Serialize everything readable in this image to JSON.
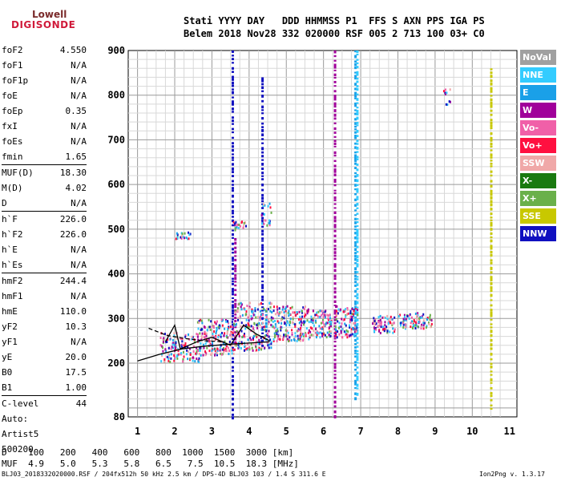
{
  "logo": {
    "top": "Lowell",
    "bottom": "DIGISONDE"
  },
  "header": {
    "line1": "Stati YYYY DAY   DDD HHMMSS P1  FFS S AXN PPS IGA PS",
    "line2": "Belem 2018 Nov28 332 020000 RSF 005 2 713 100 03+ C0"
  },
  "parameters": [
    {
      "name": "foF2",
      "value": "4.550"
    },
    {
      "name": "foF1",
      "value": "N/A"
    },
    {
      "name": "foF1p",
      "value": "N/A"
    },
    {
      "name": "foE",
      "value": "N/A"
    },
    {
      "name": "foEp",
      "value": "0.35"
    },
    {
      "name": "fxI",
      "value": "N/A"
    },
    {
      "name": "foEs",
      "value": "N/A"
    },
    {
      "name": "fmin",
      "value": "1.65"
    },
    {
      "name": "MUF(D)",
      "value": "18.30"
    },
    {
      "name": "M(D)",
      "value": "4.02"
    },
    {
      "name": "D",
      "value": "N/A"
    },
    {
      "name": "h`F",
      "value": "226.0"
    },
    {
      "name": "h`F2",
      "value": "226.0"
    },
    {
      "name": "h`E",
      "value": "N/A"
    },
    {
      "name": "h`Es",
      "value": "N/A"
    },
    {
      "name": "hmF2",
      "value": "244.4"
    },
    {
      "name": "hmF1",
      "value": "N/A"
    },
    {
      "name": "hmE",
      "value": "110.0"
    },
    {
      "name": "yF2",
      "value": "10.3"
    },
    {
      "name": "yF1",
      "value": "N/A"
    },
    {
      "name": "yE",
      "value": "20.0"
    },
    {
      "name": "B0",
      "value": "17.5"
    },
    {
      "name": "B1",
      "value": "1.00"
    },
    {
      "name": "C-level",
      "value": "44"
    }
  ],
  "auto": {
    "line1": "Auto:",
    "line2": "Artist5",
    "line3": "500200"
  },
  "legend": [
    {
      "label": "NoVal",
      "color": "#a0a0a0"
    },
    {
      "label": "NNE",
      "color": "#33ccff"
    },
    {
      "label": "E",
      "color": "#1aa0e8"
    },
    {
      "label": "W",
      "color": "#a0009a"
    },
    {
      "label": "Vo-",
      "color": "#f060a8"
    },
    {
      "label": "Vo+",
      "color": "#ff1040"
    },
    {
      "label": "SSW",
      "color": "#f0a8a8"
    },
    {
      "label": "X-",
      "color": "#1a7a10"
    },
    {
      "label": "X+",
      "color": "#6ab04a"
    },
    {
      "label": "SSE",
      "color": "#c8c800"
    },
    {
      "label": "NNW",
      "color": "#1010c0"
    }
  ],
  "bottom_table": {
    "d_label": "D",
    "d_values": [
      "100",
      "200",
      "400",
      "600",
      "800",
      "1000",
      "1500",
      "3000"
    ],
    "d_unit": "[km]",
    "muf_label": "MUF",
    "muf_values": [
      "4.9",
      "5.0",
      "5.3",
      "5.8",
      "6.5",
      "7.5",
      "10.5",
      "18.3"
    ],
    "muf_unit": "[MHz]"
  },
  "footer": {
    "left": "BLJ03_2018332020000.RSF / 204fx512h 50 kHz 2.5 km / DPS-4D BLJ03 103 / 1.4 S 311.6 E",
    "right": "Ion2Png v. 1.3.17"
  },
  "chart_data": {
    "type": "scatter",
    "title": "",
    "xlabel": "",
    "ylabel": "",
    "xlim": [
      1,
      11
    ],
    "ylim": [
      80,
      900
    ],
    "x_ticks": [
      "1",
      "2",
      "3",
      "4",
      "5",
      "6",
      "7",
      "8",
      "9",
      "10",
      "11"
    ],
    "y_ticks": [
      "80",
      "200",
      "300",
      "400",
      "500",
      "600",
      "700",
      "800",
      "900"
    ],
    "grid": true,
    "legend_position": "right",
    "traces": [
      {
        "name": "solid",
        "points": [
          [
            1.0,
            205
          ],
          [
            1.6,
            220
          ],
          [
            2.2,
            232
          ],
          [
            2.8,
            238
          ],
          [
            3.4,
            242
          ],
          [
            4.0,
            245
          ],
          [
            4.55,
            248
          ]
        ]
      },
      {
        "name": "dashed",
        "points": [
          [
            1.3,
            278
          ],
          [
            1.8,
            262
          ],
          [
            2.3,
            255
          ],
          [
            2.8,
            250
          ],
          [
            3.3,
            248
          ]
        ]
      },
      {
        "name": "profile",
        "points": [
          [
            1.75,
            248
          ],
          [
            2.0,
            285
          ],
          [
            2.15,
            232
          ],
          [
            2.6,
            248
          ],
          [
            3.0,
            258
          ],
          [
            3.5,
            240
          ],
          [
            3.85,
            285
          ],
          [
            4.2,
            265
          ],
          [
            4.55,
            250
          ]
        ]
      }
    ],
    "columns": [
      {
        "x": 3.55,
        "y0": 80,
        "y1": 900,
        "color": "#1010c0"
      },
      {
        "x": 3.62,
        "y0": 240,
        "y1": 480,
        "color": "#a0009a"
      },
      {
        "x": 4.35,
        "y0": 240,
        "y1": 840,
        "color": "#1010c0"
      },
      {
        "x": 4.45,
        "y0": 250,
        "y1": 320,
        "color": "#1aa0e8"
      },
      {
        "x": 6.3,
        "y0": 80,
        "y1": 900,
        "color": "#a0009a"
      },
      {
        "x": 6.85,
        "y0": 120,
        "y1": 900,
        "color": "#1aa0e8"
      },
      {
        "x": 6.9,
        "y0": 130,
        "y1": 900,
        "color": "#33ccff"
      },
      {
        "x": 10.5,
        "y0": 100,
        "y1": 860,
        "color": "#c8c800"
      }
    ],
    "clusters": [
      {
        "x0": 1.6,
        "x1": 2.7,
        "y0": 205,
        "y1": 270,
        "n": 140
      },
      {
        "x0": 2.6,
        "x1": 3.6,
        "y0": 220,
        "y1": 300,
        "n": 180
      },
      {
        "x0": 3.6,
        "x1": 4.6,
        "y0": 230,
        "y1": 340,
        "n": 200
      },
      {
        "x0": 4.6,
        "x1": 5.6,
        "y0": 250,
        "y1": 330,
        "n": 180
      },
      {
        "x0": 5.6,
        "x1": 6.2,
        "y0": 260,
        "y1": 320,
        "n": 100
      },
      {
        "x0": 6.3,
        "x1": 6.9,
        "y0": 260,
        "y1": 330,
        "n": 110
      },
      {
        "x0": 7.3,
        "x1": 7.9,
        "y0": 270,
        "y1": 310,
        "n": 80
      },
      {
        "x0": 8.0,
        "x1": 8.9,
        "y0": 280,
        "y1": 315,
        "n": 90
      },
      {
        "x0": 2.0,
        "x1": 2.4,
        "y0": 480,
        "y1": 495,
        "n": 20
      },
      {
        "x0": 3.5,
        "x1": 3.9,
        "y0": 500,
        "y1": 520,
        "n": 20
      },
      {
        "x0": 4.3,
        "x1": 4.6,
        "y0": 510,
        "y1": 560,
        "n": 20
      },
      {
        "x0": 9.2,
        "x1": 9.4,
        "y0": 780,
        "y1": 820,
        "n": 10
      }
    ]
  }
}
